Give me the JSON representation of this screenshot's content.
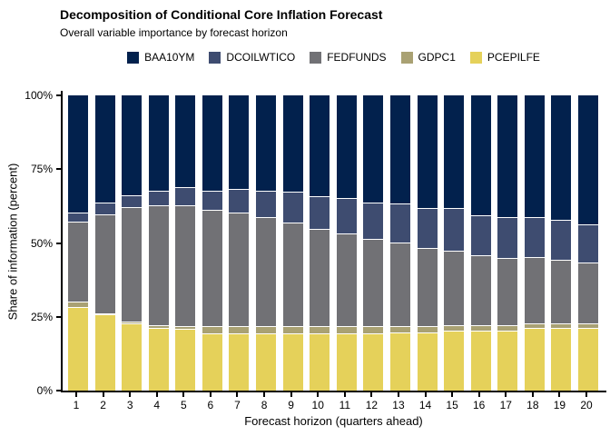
{
  "header": {
    "title": "Decomposition of Conditional Core Inflation Forecast",
    "subtitle": "Overall variable importance by forecast horizon"
  },
  "legend": [
    {
      "label": "BAA10YM",
      "color": "#02214d",
      "swatch": "baa10ym-swatch"
    },
    {
      "label": "DCOILWTICO",
      "color": "#3e4c70",
      "swatch": "dcoilwtico-swatch"
    },
    {
      "label": "FEDFUNDS",
      "color": "#717175",
      "swatch": "fedfunds-swatch"
    },
    {
      "label": "GDPC1",
      "color": "#a9a173",
      "swatch": "gdpc1-swatch"
    },
    {
      "label": "PCEPILFE",
      "color": "#e5d15a",
      "swatch": "pcepilfe-swatch"
    }
  ],
  "chart_data": {
    "type": "bar",
    "stacked": true,
    "units": "percent of 100% stacked share",
    "title": "Decomposition of Conditional Core Inflation Forecast",
    "subtitle": "Overall variable importance by forecast horizon",
    "xlabel": "Forecast horizon (quarters ahead)",
    "ylabel": "Share of information (percent)",
    "ylim": [
      0,
      100
    ],
    "ytick_values": [
      0,
      25,
      50,
      75,
      100
    ],
    "ytick_labels": [
      "0%",
      "25%",
      "50%",
      "75%",
      "100%"
    ],
    "grid": false,
    "legend_position": "top",
    "categories": [
      1,
      2,
      3,
      4,
      5,
      6,
      7,
      8,
      9,
      10,
      11,
      12,
      13,
      14,
      15,
      16,
      17,
      18,
      19,
      20
    ],
    "stack_order_bottom_to_top": [
      "PCEPILFE",
      "GDPC1",
      "FEDFUNDS",
      "DCOILWTICO",
      "BAA10YM"
    ],
    "series": [
      {
        "name": "BAA10YM",
        "color": "#02214d",
        "values": [
          40,
          36.5,
          34,
          32.5,
          31.5,
          32.5,
          32,
          32.5,
          33,
          34.5,
          35,
          36.5,
          37,
          38.5,
          38.5,
          41,
          41.5,
          41.5,
          42.5,
          44
        ]
      },
      {
        "name": "DCOILWTICO",
        "color": "#3e4c70",
        "values": [
          3,
          4,
          4,
          5,
          6,
          6.5,
          8,
          9,
          10.5,
          11,
          12,
          12.5,
          13,
          13.5,
          14.5,
          13.5,
          14,
          13.5,
          13.5,
          13
        ]
      },
      {
        "name": "FEDFUNDS",
        "color": "#717175",
        "values": [
          27,
          33.5,
          39,
          40.5,
          41,
          39.5,
          38.5,
          37,
          35,
          33,
          31.5,
          29.5,
          28.5,
          26.5,
          25,
          23.5,
          22.5,
          22.5,
          21.5,
          20.5
        ]
      },
      {
        "name": "GDPC1",
        "color": "#a9a173",
        "values": [
          2,
          0.5,
          0.5,
          1,
          1,
          2.5,
          2.5,
          2.5,
          2.5,
          2.5,
          2.5,
          2.5,
          2,
          2,
          2,
          2,
          2,
          1.5,
          1.5,
          1.5
        ]
      },
      {
        "name": "PCEPILFE",
        "color": "#e5d15a",
        "values": [
          28,
          25.5,
          22.5,
          21,
          20.5,
          19,
          19,
          19,
          19,
          19,
          19,
          19,
          19.5,
          19.5,
          20,
          20,
          20,
          21,
          21,
          21
        ]
      }
    ]
  }
}
